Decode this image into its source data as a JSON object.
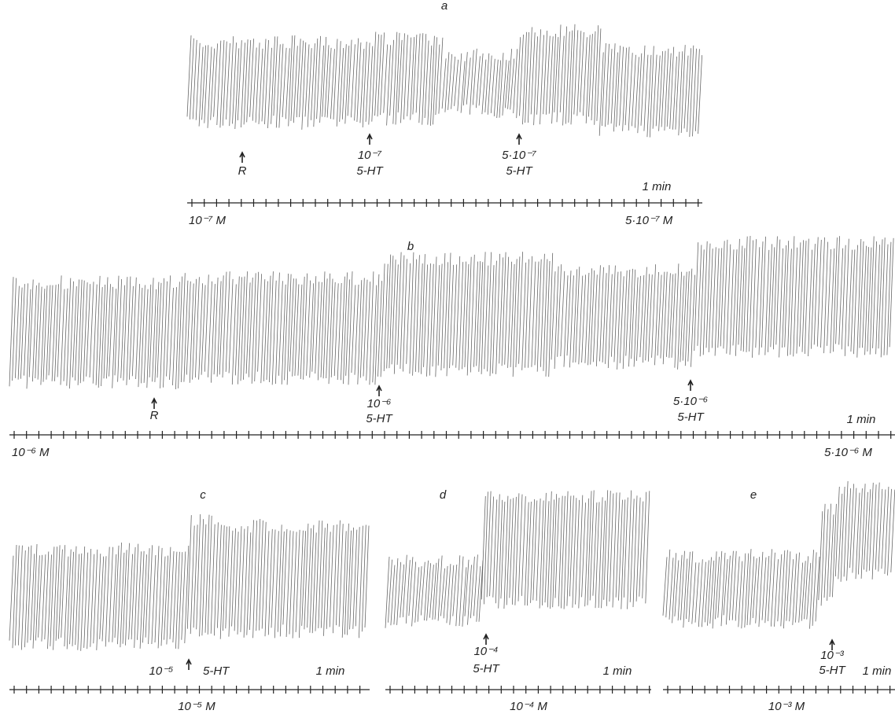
{
  "panels": [
    {
      "label": "a",
      "markers": [
        {
          "lines": [
            "R"
          ]
        },
        {
          "lines": [
            "10⁻⁷",
            "5-HT"
          ]
        },
        {
          "lines": [
            "5·10⁻⁷",
            "5-HT"
          ]
        }
      ],
      "time_label": "1 min",
      "scale_labels": [
        "10⁻⁷ M",
        "5·10⁻⁷ M"
      ]
    },
    {
      "label": "b",
      "markers": [
        {
          "lines": [
            "R"
          ]
        },
        {
          "lines": [
            "10⁻⁶",
            "5-HT"
          ]
        },
        {
          "lines": [
            "5·10⁻⁶",
            "5-HT"
          ]
        }
      ],
      "time_label": "1 min",
      "scale_labels": [
        "10⁻⁶ M",
        "5·10⁻⁶ M"
      ]
    },
    {
      "label": "c",
      "markers": [
        {
          "lines": [
            "10⁻⁵",
            "5-HT"
          ]
        }
      ],
      "time_label": "1 min",
      "scale_labels": [
        "10⁻⁵ M"
      ]
    },
    {
      "label": "d",
      "markers": [
        {
          "lines": [
            "10⁻⁴",
            "5-HT"
          ]
        }
      ],
      "time_label": "1 min",
      "scale_labels": [
        "10⁻⁴ M"
      ]
    },
    {
      "label": "e",
      "markers": [
        {
          "lines": [
            "10⁻³",
            "5-HT"
          ]
        }
      ],
      "time_label": "1 min",
      "scale_labels": [
        "10⁻³ M"
      ]
    }
  ]
}
